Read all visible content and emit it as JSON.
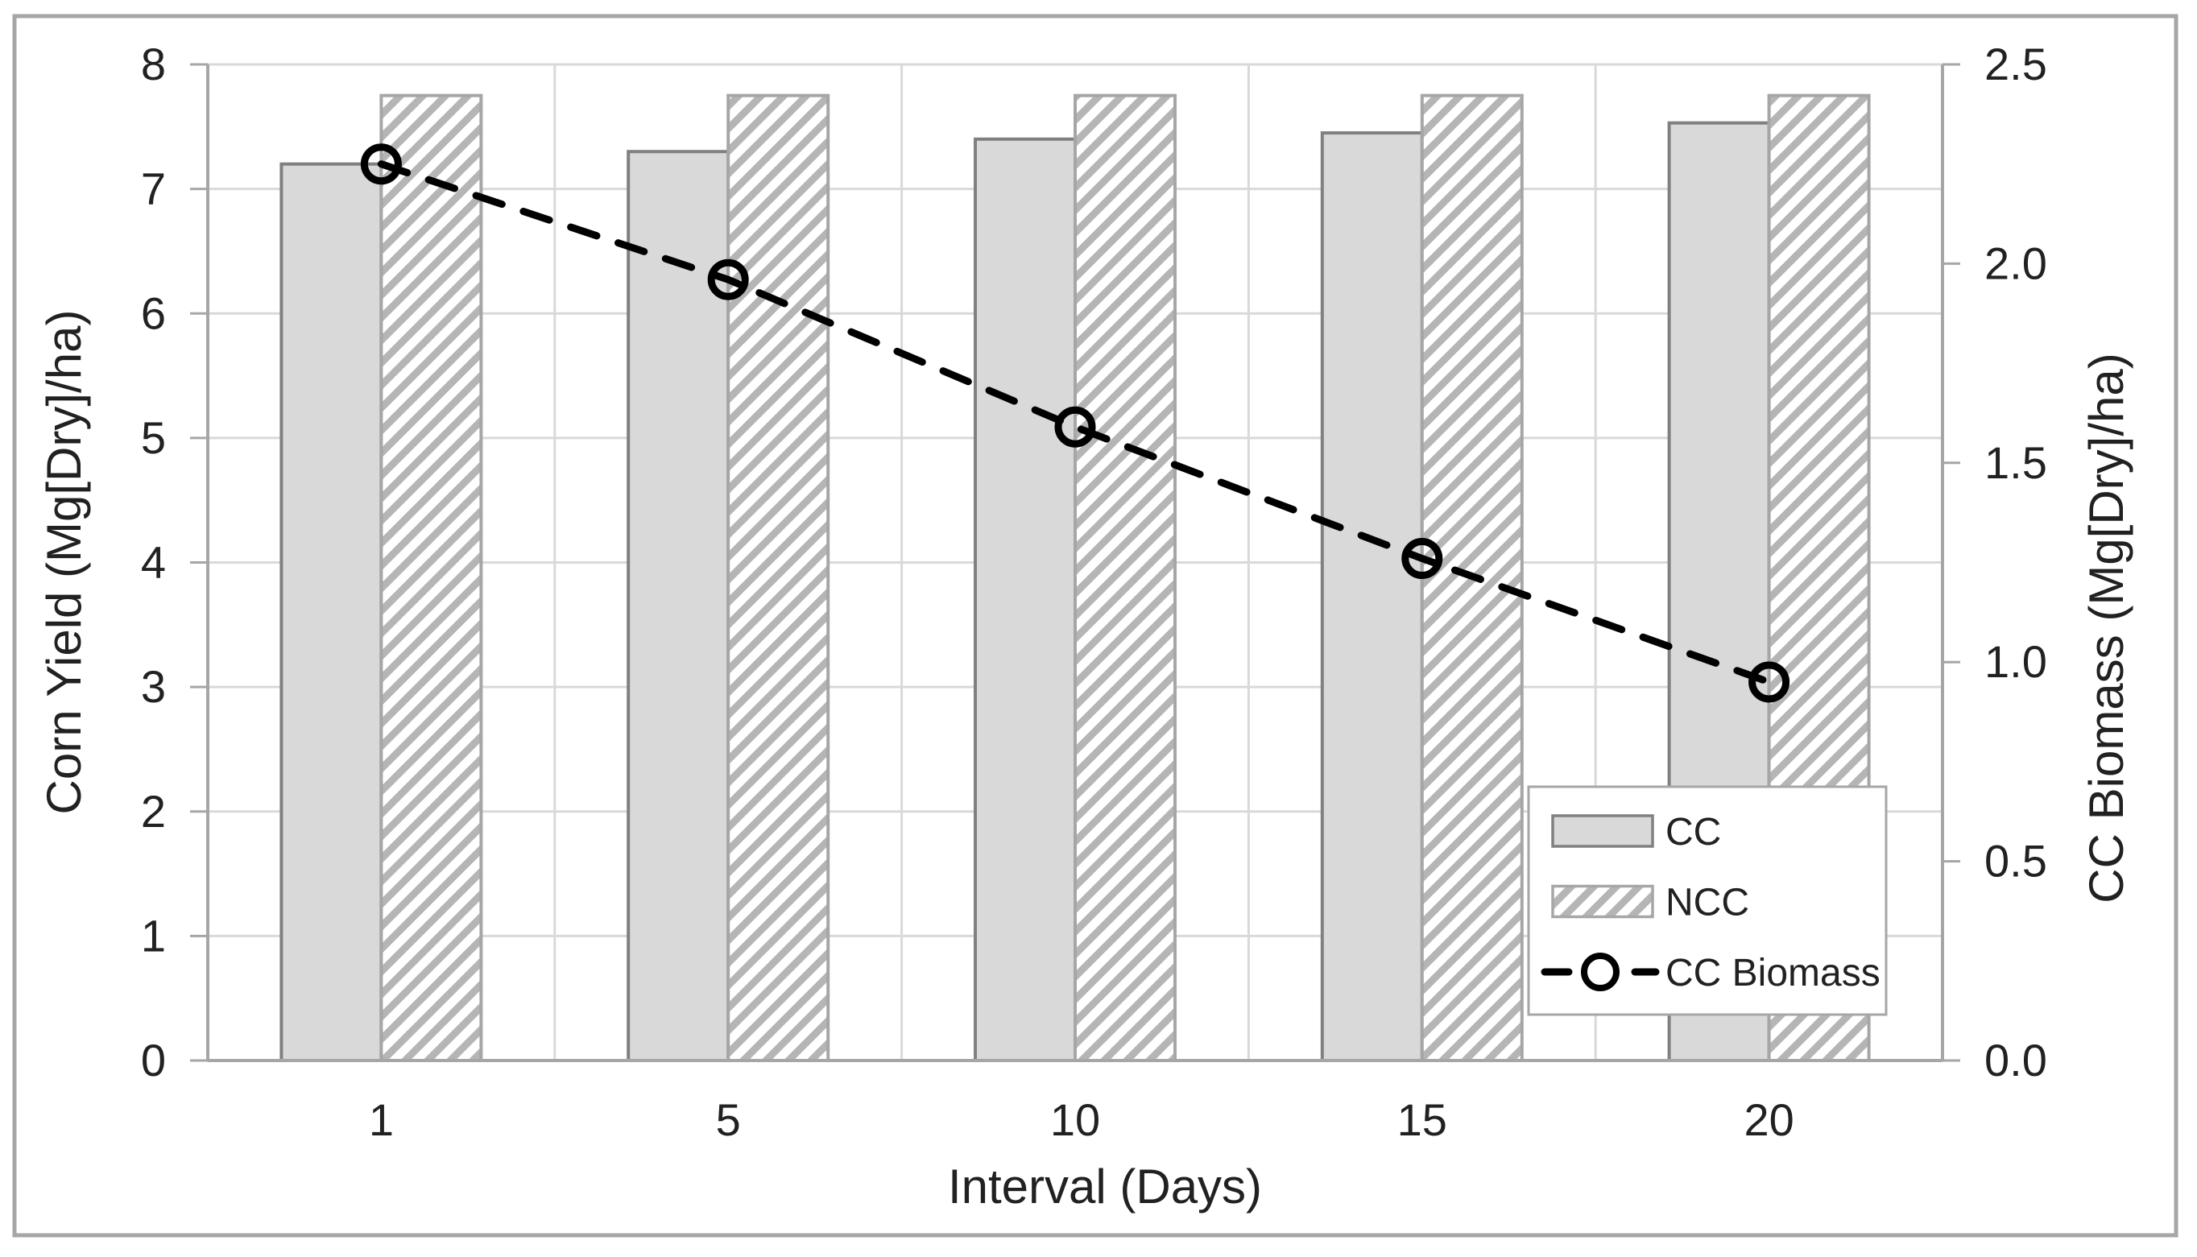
{
  "chart_data": {
    "type": "combo-bar-line",
    "categories": [
      "1",
      "5",
      "10",
      "15",
      "20"
    ],
    "x_axis": {
      "label": "Interval (Days)"
    },
    "left_axis": {
      "label": "Corn Yield (Mg[Dry]/ha)",
      "min": 0,
      "max": 8,
      "tick_step": 1,
      "tick_decimals": 0
    },
    "right_axis": {
      "label": "CC Biomass (Mg[Dry]/ha)",
      "min": 0,
      "max": 2.5,
      "tick_step": 0.5,
      "tick_decimals": 1
    },
    "series": [
      {
        "name": "CC",
        "type": "bar",
        "axis": "left",
        "values": [
          7.2,
          7.3,
          7.4,
          7.45,
          7.53
        ]
      },
      {
        "name": "NCC",
        "type": "bar",
        "axis": "left",
        "values": [
          7.75,
          7.75,
          7.75,
          7.75,
          7.75
        ]
      },
      {
        "name": "CC Biomass",
        "type": "line",
        "axis": "right",
        "values": [
          2.25,
          1.96,
          1.59,
          1.26,
          0.95
        ]
      }
    ],
    "legend": {
      "position": "inside-bottom-right",
      "items": [
        "CC",
        "NCC",
        "CC Biomass"
      ]
    },
    "grid": true,
    "colors": {
      "background": "#ffffff",
      "figure_border": "#a6a6a6",
      "axis_line": "#a6a6a6",
      "gridline": "#d9d9d9",
      "text": "#212121",
      "cc_fill": "#d9d9d9",
      "cc_border": "#808080",
      "ncc_fill": "#ffffff",
      "ncc_hatch": "#b5b5b5",
      "ncc_border": "#a6a6a6",
      "line": "#000000"
    }
  }
}
